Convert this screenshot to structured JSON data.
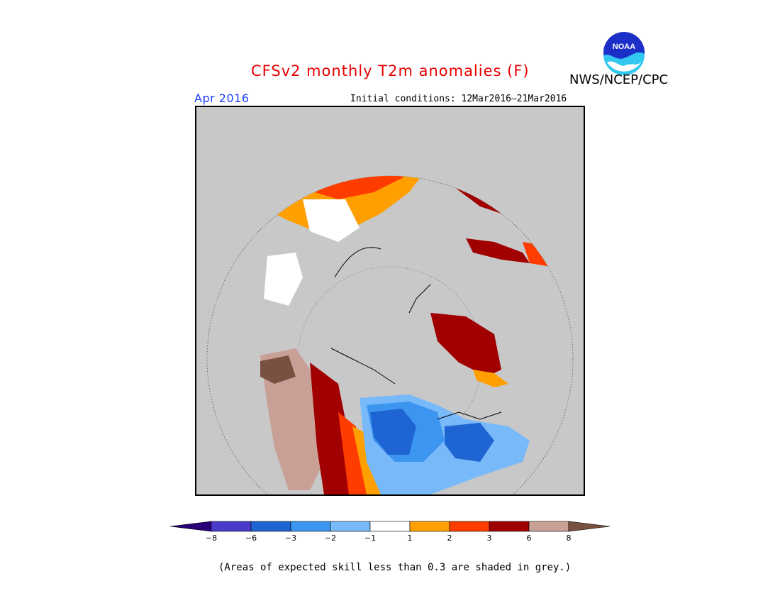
{
  "title": "CFSv2 monthly T2m anomalies (F)",
  "agency": "NWS/NCEP/CPC",
  "logo": {
    "icon": "noaa-logo-icon",
    "text": "NOAA"
  },
  "valid_month": "Apr 2016",
  "initial_conditions": "Initial conditions: 12Mar2016–21Mar2016",
  "footnote": "(Areas of expected skill less than 0.3 are shaded in grey.)",
  "colors": {
    "title": "#e80000",
    "valid_month": "#1e3cff",
    "low_skill_grey": "#c8c8c8"
  },
  "legend": {
    "tick_labels": [
      "−8",
      "−6",
      "−3",
      "−2",
      "−1",
      "1",
      "2",
      "3",
      "6",
      "8"
    ],
    "bins": [
      {
        "range": "< -8",
        "color": "#28007a"
      },
      {
        "range": "-8 to -6",
        "color": "#4a3cc8"
      },
      {
        "range": "-6 to -3",
        "color": "#1e64d2"
      },
      {
        "range": "-3 to -2",
        "color": "#3c96f0"
      },
      {
        "range": "-2 to -1",
        "color": "#78b9fa"
      },
      {
        "range": "-1 to 1",
        "color": "#ffffff"
      },
      {
        "range": "1 to 2",
        "color": "#ffa000"
      },
      {
        "range": "2 to 3",
        "color": "#ff3c00"
      },
      {
        "range": "3 to 6",
        "color": "#a00000"
      },
      {
        "range": "6 to 8",
        "color": "#c8a096"
      },
      {
        "range": "> 8",
        "color": "#7a5040"
      }
    ]
  }
}
